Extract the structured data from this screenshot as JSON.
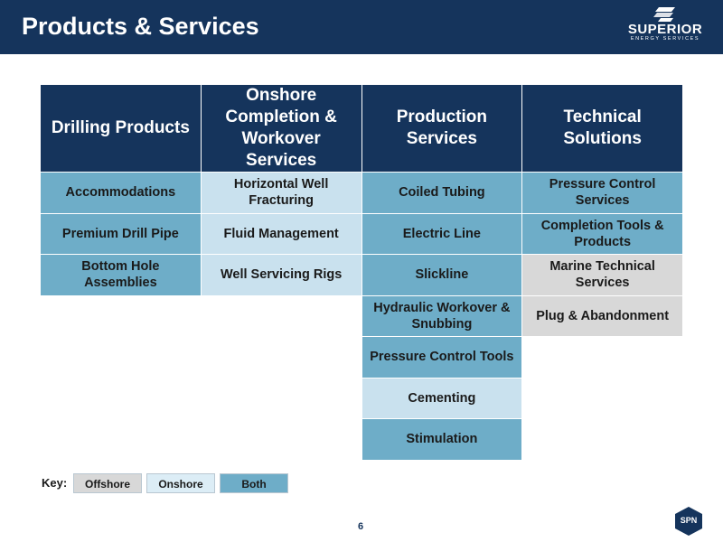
{
  "header": {
    "title": "Products & Services",
    "logo": {
      "name": "SUPERIOR",
      "tagline": "ENERGY SERVICES"
    }
  },
  "table": {
    "columns": [
      "Drilling Products",
      "Onshore Completion & Workover Services",
      "Production Services",
      "Technical Solutions"
    ],
    "rows": [
      [
        {
          "text": "Accommodations",
          "category": "both"
        },
        {
          "text": "Horizontal Well Fracturing",
          "category": "onshore"
        },
        {
          "text": "Coiled Tubing",
          "category": "both"
        },
        {
          "text": "Pressure Control Services",
          "category": "both"
        }
      ],
      [
        {
          "text": "Premium Drill Pipe",
          "category": "both"
        },
        {
          "text": "Fluid Management",
          "category": "onshore"
        },
        {
          "text": "Electric Line",
          "category": "both"
        },
        {
          "text": "Completion Tools & Products",
          "category": "both"
        }
      ],
      [
        {
          "text": "Bottom Hole Assemblies",
          "category": "both"
        },
        {
          "text": "Well Servicing Rigs",
          "category": "onshore"
        },
        {
          "text": "Slickline",
          "category": "both"
        },
        {
          "text": "Marine Technical Services",
          "category": "offshore"
        }
      ],
      [
        {
          "text": "",
          "category": "empty"
        },
        {
          "text": "",
          "category": "empty"
        },
        {
          "text": "Hydraulic Workover & Snubbing",
          "category": "both"
        },
        {
          "text": "Plug & Abandonment",
          "category": "offshore"
        }
      ],
      [
        {
          "text": "",
          "category": "empty"
        },
        {
          "text": "",
          "category": "empty"
        },
        {
          "text": "Pressure Control Tools",
          "category": "both"
        },
        {
          "text": "",
          "category": "empty"
        }
      ],
      [
        {
          "text": "",
          "category": "empty"
        },
        {
          "text": "",
          "category": "empty"
        },
        {
          "text": "Cementing",
          "category": "onshore"
        },
        {
          "text": "",
          "category": "empty"
        }
      ],
      [
        {
          "text": "",
          "category": "empty"
        },
        {
          "text": "",
          "category": "empty"
        },
        {
          "text": "Stimulation",
          "category": "both"
        },
        {
          "text": "",
          "category": "empty"
        }
      ]
    ]
  },
  "key": {
    "label": "Key:",
    "items": [
      {
        "label": "Offshore",
        "category": "offshore"
      },
      {
        "label": "Onshore",
        "category": "onshore"
      },
      {
        "label": "Both",
        "category": "both"
      }
    ]
  },
  "footer": {
    "page_number": "6",
    "badge": "SPN"
  },
  "colors": {
    "header_navy": "#15345c",
    "both": "#6eadc8",
    "onshore": "#c9e1ee",
    "offshore": "#d8d8d8"
  }
}
